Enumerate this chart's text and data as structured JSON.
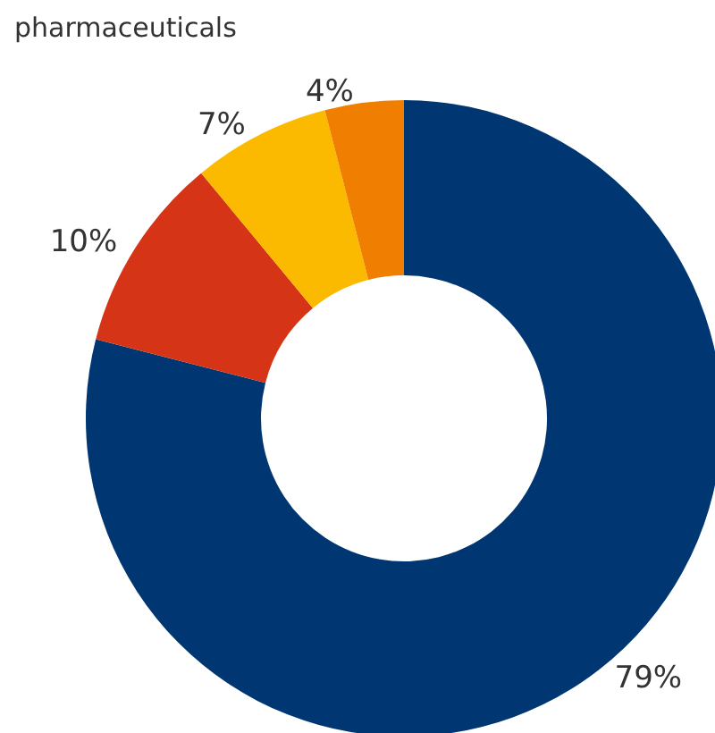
{
  "chart_data": {
    "type": "donut",
    "categories": [
      null,
      null,
      null,
      null
    ],
    "values": [
      79,
      10,
      7,
      4
    ],
    "colors": [
      "#003671",
      "#d53417",
      "#fbb900",
      "#f07e00"
    ],
    "value_labels": [
      "79%",
      "10%",
      "7%",
      "4%"
    ],
    "annotations": [
      "pharmaceuticals"
    ]
  }
}
